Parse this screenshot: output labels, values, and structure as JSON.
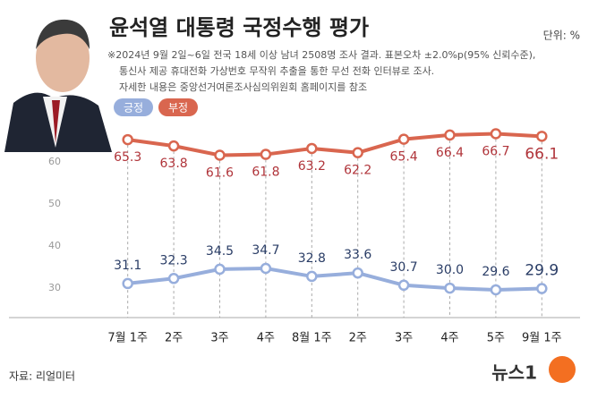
{
  "chart_data": {
    "type": "line",
    "title": "윤석열 대통령 국정수행 평가",
    "unit": "단위: %",
    "notes": [
      "※2024년 9월 2일~6일 전국 18세 이상 남녀 2508명 조사 결과. 표본오차 ±2.0%p(95% 신뢰수준),",
      "통신사 제공 휴대전화 가상번호 무작위 추출을 통한 무선 전화 인터뷰로 조사.",
      "자세한 내용은 중앙선거여론조사심의위원회 홈페이지를 참조"
    ],
    "source": "자료: 리얼미터",
    "logo": "뉴스1",
    "categories": [
      "7월 1주",
      "2주",
      "3주",
      "4주",
      "8월 1주",
      "2주",
      "3주",
      "4주",
      "5주",
      "9월 1주"
    ],
    "series": [
      {
        "name": "긍정",
        "color": "#97aedc",
        "label_color": "#2a3d66",
        "values": [
          31.1,
          32.3,
          34.5,
          34.7,
          32.8,
          33.6,
          30.7,
          30.0,
          29.6,
          29.9
        ],
        "value_labels": [
          "31.1",
          "32.3",
          "34.5",
          "34.7",
          "32.8",
          "33.6",
          "30.7",
          "30.0",
          "29.6",
          "29.9"
        ]
      },
      {
        "name": "부정",
        "color": "#d9664f",
        "label_color": "#b0343a",
        "values": [
          65.3,
          63.8,
          61.6,
          61.8,
          63.2,
          62.2,
          65.4,
          66.4,
          66.7,
          66.1
        ],
        "value_labels": [
          "65.3",
          "63.8",
          "61.6",
          "61.8",
          "63.2",
          "62.2",
          "65.4",
          "66.4",
          "66.7",
          "66.1"
        ]
      }
    ],
    "ylim": [
      23,
      70
    ],
    "yticks": [
      30,
      40,
      50,
      60
    ],
    "grid": false
  }
}
